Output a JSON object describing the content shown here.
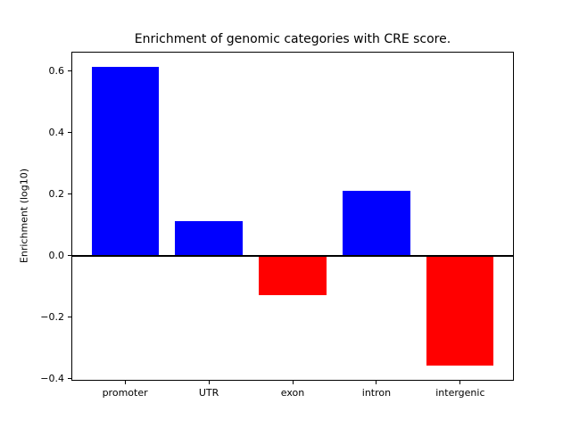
{
  "figure": {
    "background": "#ffffff",
    "axis_color": "#000000",
    "text_color": "#000000"
  },
  "chart_data": {
    "type": "bar",
    "title": "Enrichment of genomic categories with CRE score.",
    "xlabel": "",
    "ylabel": "Enrichment (log10)",
    "categories": [
      "promoter",
      "UTR",
      "exon",
      "intron",
      "intergenic"
    ],
    "values": [
      0.614,
      0.114,
      -0.128,
      0.212,
      -0.357
    ],
    "positive_color": "#0000ff",
    "negative_color": "#ff0000",
    "bar_width": 0.8,
    "xlim": [
      -0.64,
      4.64
    ],
    "ylim": [
      -0.406,
      0.663
    ],
    "yticks": [
      {
        "value": 0.6,
        "label": "0.6"
      },
      {
        "value": 0.4,
        "label": "0.4"
      },
      {
        "value": 0.2,
        "label": "0.2"
      },
      {
        "value": 0.0,
        "label": "0.0"
      },
      {
        "value": -0.2,
        "label": "−0.2"
      },
      {
        "value": -0.4,
        "label": "−0.4"
      }
    ],
    "grid": false,
    "legend_position": "none",
    "zero_line": {
      "value": 0,
      "color": "#000000"
    }
  }
}
